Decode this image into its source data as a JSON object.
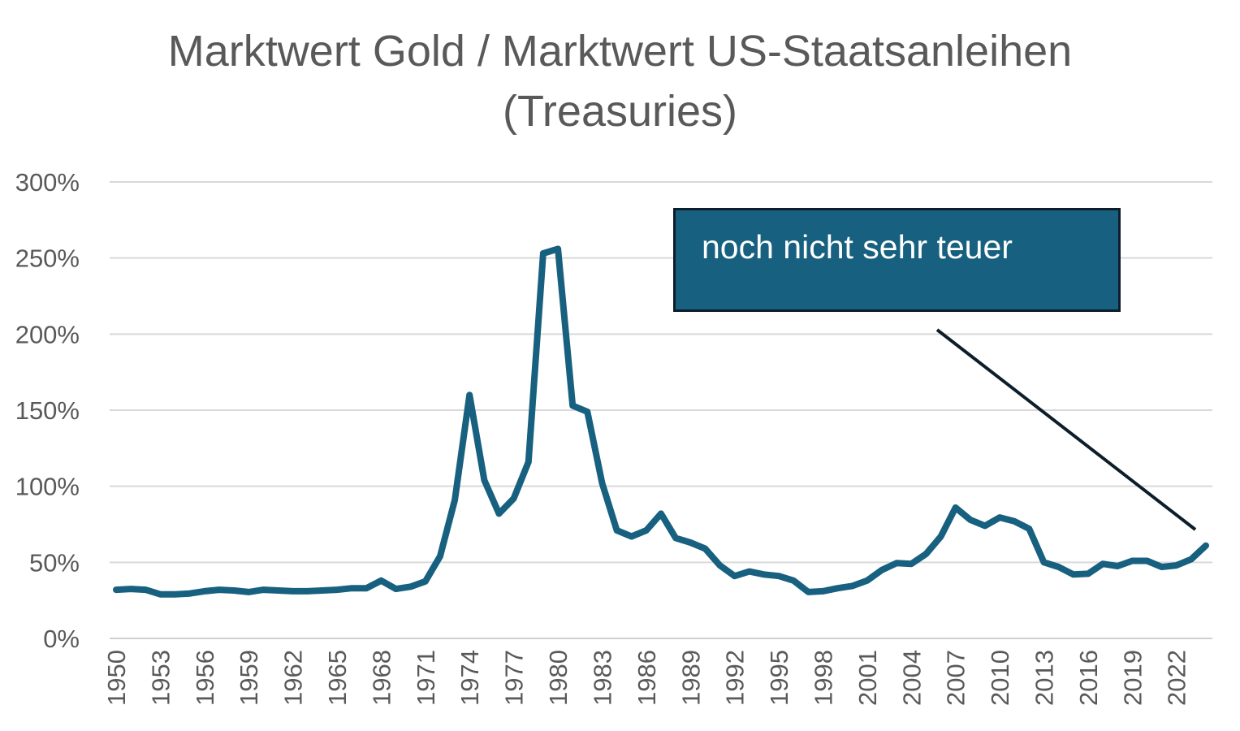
{
  "chart_data": {
    "type": "line",
    "title": "Marktwert Gold / Marktwert US-Staatsanleihen",
    "title_line2": "(Treasuries)",
    "xlabel": "",
    "ylabel": "",
    "ylim": [
      0,
      300
    ],
    "yticks": [
      "0%",
      "50%",
      "100%",
      "150%",
      "200%",
      "250%",
      "300%"
    ],
    "ytick_values": [
      0,
      50,
      100,
      150,
      200,
      250,
      300
    ],
    "xticks": [
      "1950",
      "1953",
      "1956",
      "1959",
      "1962",
      "1965",
      "1968",
      "1971",
      "1974",
      "1977",
      "1980",
      "1983",
      "1986",
      "1989",
      "1992",
      "1995",
      "1998",
      "2001",
      "2004",
      "2007",
      "2010",
      "2013",
      "2016",
      "2019",
      "2022"
    ],
    "grid": true,
    "line_color": "#17607f",
    "x": [
      1950,
      1951,
      1952,
      1953,
      1954,
      1955,
      1956,
      1957,
      1958,
      1959,
      1960,
      1961,
      1962,
      1963,
      1964,
      1965,
      1966,
      1967,
      1968,
      1969,
      1970,
      1971,
      1972,
      1973,
      1974,
      1975,
      1976,
      1977,
      1978,
      1979,
      1980,
      1981,
      1982,
      1983,
      1984,
      1985,
      1986,
      1987,
      1988,
      1989,
      1990,
      1991,
      1992,
      1993,
      1994,
      1995,
      1996,
      1997,
      1998,
      1999,
      2000,
      2001,
      2002,
      2003,
      2004,
      2005,
      2006,
      2007,
      2008,
      2009,
      2010,
      2011,
      2012,
      2013,
      2014,
      2015,
      2016,
      2017,
      2018,
      2019,
      2020,
      2021,
      2022,
      2023,
      2024
    ],
    "values": [
      32,
      32.5,
      32,
      29,
      29,
      29.5,
      31,
      32,
      31.5,
      30.5,
      32,
      31.5,
      31,
      31,
      31.5,
      32,
      33,
      33,
      38,
      32.5,
      34,
      37.5,
      54,
      91,
      160,
      104,
      82,
      92,
      116,
      253,
      256,
      153,
      149,
      102,
      71,
      67,
      71,
      82,
      66,
      63,
      59,
      48,
      41,
      44,
      42,
      41,
      38,
      30.5,
      31,
      33,
      34.5,
      38,
      45,
      49.5,
      49,
      55.5,
      67,
      86,
      78,
      74,
      79.5,
      77,
      72,
      50,
      47,
      42,
      42.5,
      49,
      47.5,
      51,
      51,
      47,
      48,
      52,
      61
    ],
    "annotation": {
      "text": "noch nicht sehr teuer",
      "box_color": "#17607f",
      "border_color": "#0d1e2b",
      "arrow_color": "#0d1e2b"
    }
  }
}
